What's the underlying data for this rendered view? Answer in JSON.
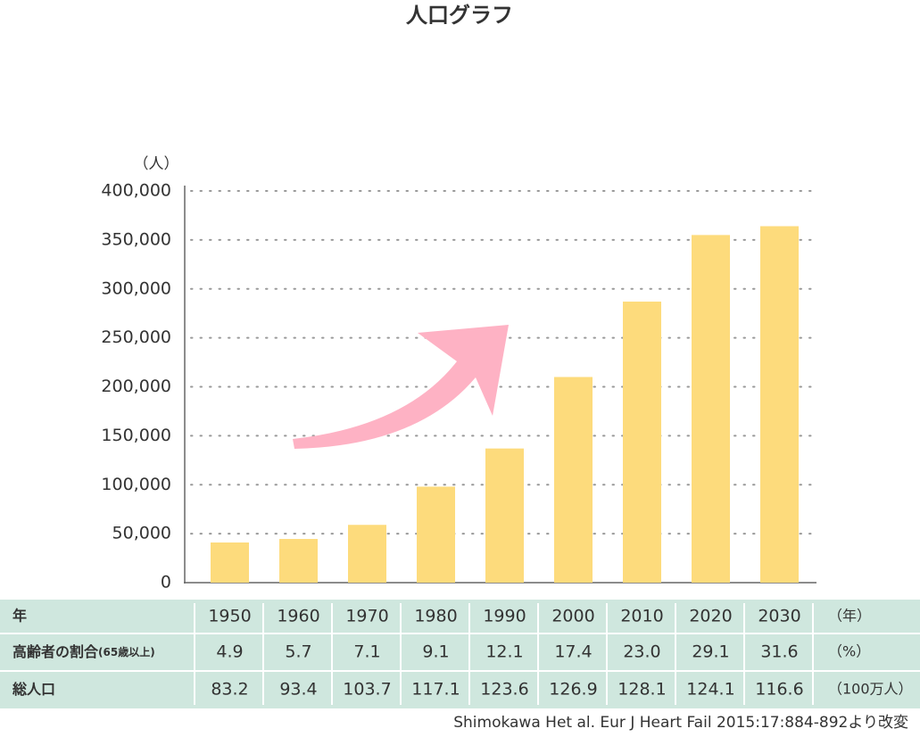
{
  "chart_data": {
    "type": "bar",
    "title": "人口グラフ",
    "y_unit": "（人）",
    "categories": [
      "1950",
      "1960",
      "1970",
      "1980",
      "1990",
      "2000",
      "2010",
      "2020",
      "2030"
    ],
    "values": [
      41000,
      44600,
      59000,
      98000,
      137000,
      210000,
      287000,
      355000,
      364000
    ],
    "color": "#fddb7c",
    "ylim": [
      0,
      400000
    ],
    "yticks": [
      0,
      {
        "value": 50000,
        "label": "50,000"
      },
      {
        "value": 100000,
        "label": "100,000"
      },
      {
        "value": 150000,
        "label": "150,000"
      },
      {
        "value": 200000,
        "label": "200,000"
      },
      {
        "value": 250000,
        "label": "250,000"
      },
      {
        "value": 300000,
        "label": "300,000"
      },
      {
        "value": 350000,
        "label": "350,000"
      },
      {
        "value": 400000,
        "label": "400,000"
      }
    ],
    "grid": true,
    "table": {
      "year_row": {
        "label": "年",
        "unit": "（年）"
      },
      "rows": [
        {
          "label": "高齢者の割合",
          "note": "(65歳以上)",
          "values": [
            "4.9",
            "5.7",
            "7.1",
            "9.1",
            "12.1",
            "17.4",
            "23.0",
            "29.1",
            "31.6"
          ],
          "unit": "（%）"
        },
        {
          "label": "総人口",
          "values": [
            "83.2",
            "93.4",
            "103.7",
            "117.1",
            "123.6",
            "126.9",
            "128.1",
            "124.1",
            "116.6"
          ],
          "unit": "（100万人）"
        }
      ]
    },
    "source": "Shimokawa Het al. Eur J Heart Fail 2015:17:884-892より改変"
  }
}
